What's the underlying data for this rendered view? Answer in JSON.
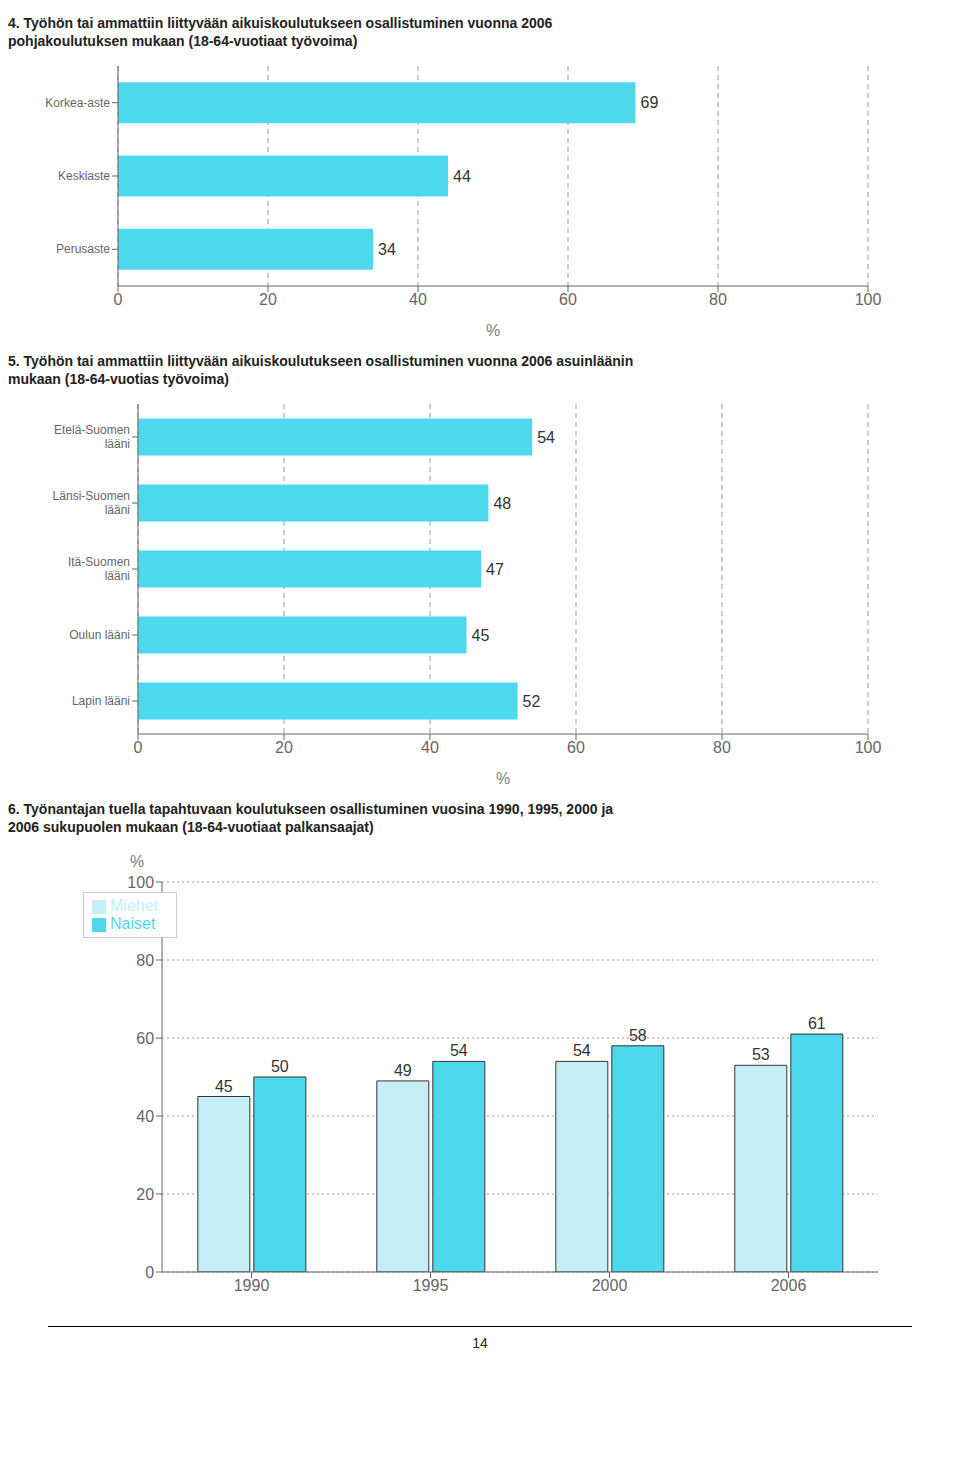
{
  "chart_data": [
    {
      "type": "bar",
      "orientation": "horizontal",
      "title": "4. Työhön tai ammattiin liittyvään aikuiskoulutukseen osallistuminen vuonna 2006\npohjakoulutuksen mukaan (18-64-vuotiaat työvoima)",
      "categories": [
        "Perusaste",
        "Keskiaste",
        "Korkea-aste"
      ],
      "values": [
        34,
        44,
        69
      ],
      "color": "#4DD9EC",
      "xlabel": "%",
      "xlim": [
        0,
        100
      ],
      "xticks": [
        0,
        20,
        40,
        60,
        80,
        100
      ],
      "grid": true,
      "data_labels": true
    },
    {
      "type": "bar",
      "orientation": "horizontal",
      "title": "5. Työhön tai ammattiin liittyvään aikuiskoulutukseen osallistuminen vuonna 2006 asuinläänin\nmukaan (18-64-vuotias työvoima)",
      "categories": [
        "Lapin lääni",
        "Oulun lääni",
        "Itä-Suomen\nlääni",
        "Länsi-Suomen\nlääni",
        "Etelä-Suomen\nlääni"
      ],
      "values": [
        52,
        45,
        47,
        48,
        54
      ],
      "color": "#4DD9EC",
      "xlabel": "%",
      "xlim": [
        0,
        100
      ],
      "xticks": [
        0,
        20,
        40,
        60,
        80,
        100
      ],
      "grid": true,
      "data_labels": true
    },
    {
      "type": "bar",
      "title": "6. Työnantajan tuella tapahtuvaan koulutukseen osallistuminen vuosina 1990, 1995, 2000 ja\n2006 sukupuolen mukaan (18-64-vuotiaat palkansaajat)",
      "categories": [
        "1990",
        "1995",
        "2000",
        "2006"
      ],
      "series": [
        {
          "name": "Miehet",
          "color": "#C6EEF7",
          "values": [
            45,
            49,
            54,
            53
          ]
        },
        {
          "name": "Naiset",
          "color": "#4DD9EC",
          "values": [
            50,
            54,
            58,
            61
          ]
        }
      ],
      "ylabel": "%",
      "ylim": [
        0,
        100
      ],
      "yticks": [
        0,
        20,
        40,
        60,
        80,
        100
      ],
      "grid": true,
      "legend": "upper left",
      "data_labels": true
    }
  ],
  "annotations": [
    "14"
  ]
}
